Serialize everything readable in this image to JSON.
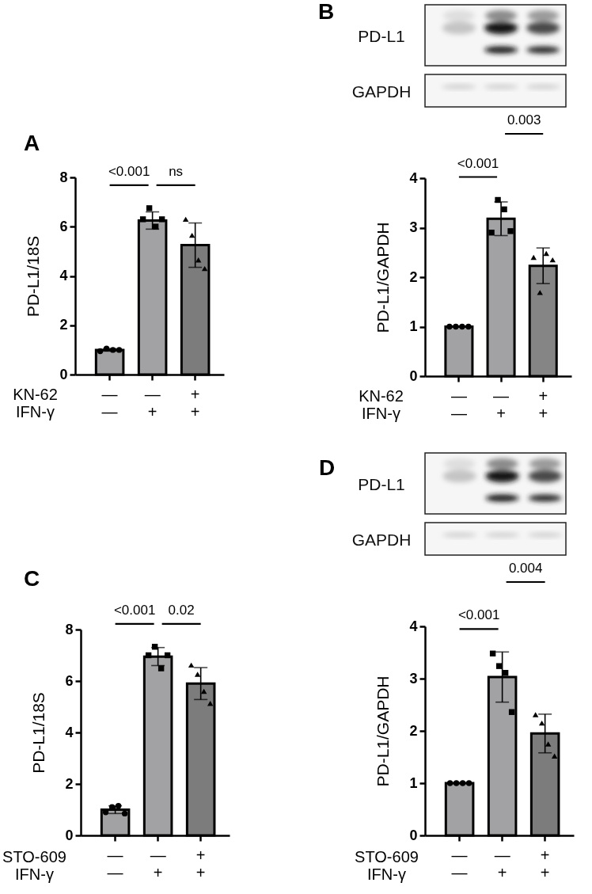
{
  "chart_data": [
    {
      "type": "bar",
      "title": "A",
      "xlabel": "KN-62\nIFN-γ",
      "ylabel": "PD-L1/18S",
      "categories": [
        "—\n—",
        "—\n+",
        "+\n+"
      ],
      "ylim": [
        0,
        8
      ],
      "yticks": [
        0,
        2,
        4,
        6,
        8
      ],
      "annotations": [
        "<0.001",
        "ns"
      ],
      "series": [
        {
          "type": "bar",
          "colors": [
            "#a2a2a4",
            "#a2a2a4",
            "#7c7c7c"
          ],
          "values": [
            1.0,
            6.25,
            5.25
          ],
          "errors": [
            0.05,
            0.35,
            0.9
          ]
        },
        {
          "type": "scatter",
          "marker": "circle",
          "color": "#000000",
          "x": [
            "—\n—",
            "—\n—",
            "—\n—",
            "—\n—"
          ],
          "values": [
            0.95,
            1.05,
            1.0,
            1.0
          ]
        },
        {
          "type": "scatter",
          "marker": "square",
          "color": "#000000",
          "x": [
            "—\n+",
            "—\n+",
            "—\n+",
            "—\n+"
          ],
          "values": [
            6.3,
            6.75,
            6.0,
            6.3
          ]
        },
        {
          "type": "scatter",
          "marker": "triangle",
          "color": "#000000",
          "x": [
            "+\n+",
            "+\n+",
            "+\n+",
            "+\n+"
          ],
          "values": [
            6.3,
            5.65,
            4.65,
            4.3
          ]
        }
      ]
    },
    {
      "type": "bar",
      "title": "B",
      "xlabel": "KN-62\nIFN-γ",
      "ylabel": "PD-L1/GAPDH",
      "categories": [
        "—\n—",
        "—\n+",
        "+\n+"
      ],
      "ylim": [
        0,
        4
      ],
      "yticks": [
        0,
        1,
        2,
        3,
        4
      ],
      "annotations": [
        "PD-L1",
        "GAPDH",
        "<0.001",
        "0.003"
      ],
      "series": [
        {
          "type": "bar",
          "colors": [
            "#a2a2a4",
            "#a2a2a4",
            "#858585"
          ],
          "values": [
            1.0,
            3.18,
            2.23
          ],
          "errors": [
            null,
            0.34,
            0.36
          ]
        },
        {
          "type": "scatter",
          "marker": "circle",
          "color": "#000000",
          "x": [
            "—\n—",
            "—\n—",
            "—\n—",
            "—\n—"
          ],
          "values": [
            1.0,
            1.0,
            1.0,
            1.0
          ]
        },
        {
          "type": "scatter",
          "marker": "square",
          "color": "#000000",
          "x": [
            "—\n+",
            "—\n+",
            "—\n+",
            "—\n+"
          ],
          "values": [
            2.9,
            3.56,
            3.37,
            2.93
          ]
        },
        {
          "type": "scatter",
          "marker": "triangle",
          "color": "#000000",
          "x": [
            "+\n+",
            "+\n+",
            "+\n+",
            "+\n+"
          ],
          "values": [
            2.4,
            1.69,
            2.48,
            2.35
          ]
        }
      ]
    },
    {
      "type": "bar",
      "title": "C",
      "xlabel": "STO-609\nIFN-γ",
      "ylabel": "PD-L1/18S",
      "categories": [
        "—\n—",
        "—\n+",
        "+\n+"
      ],
      "ylim": [
        0,
        8
      ],
      "yticks": [
        0,
        2,
        4,
        6,
        8
      ],
      "annotations": [
        "<0.001",
        "0.02"
      ],
      "series": [
        {
          "type": "bar",
          "colors": [
            "#a2a2a4",
            "#a2a2a4",
            "#7c7c7c"
          ],
          "values": [
            1.0,
            6.95,
            5.9
          ],
          "errors": [
            0.15,
            0.35,
            0.62
          ]
        },
        {
          "type": "scatter",
          "marker": "circle",
          "color": "#000000",
          "x": [
            "—\n—",
            "—\n—",
            "—\n—",
            "—\n—"
          ],
          "values": [
            0.9,
            1.1,
            1.15,
            0.85
          ]
        },
        {
          "type": "scatter",
          "marker": "square",
          "color": "#000000",
          "x": [
            "—\n+",
            "—\n+",
            "—\n+",
            "—\n+"
          ],
          "values": [
            7.0,
            7.33,
            6.49,
            7.0
          ]
        },
        {
          "type": "scatter",
          "marker": "triangle",
          "color": "#000000",
          "x": [
            "+\n+",
            "+\n+",
            "+\n+",
            "+\n+"
          ],
          "values": [
            6.62,
            6.26,
            5.6,
            5.13
          ]
        }
      ]
    },
    {
      "type": "bar",
      "title": "D",
      "xlabel": "STO-609\nIFN-γ",
      "ylabel": "PD-L1/GAPDH",
      "categories": [
        "—\n—",
        "—\n+",
        "+\n+"
      ],
      "ylim": [
        0,
        4
      ],
      "yticks": [
        0,
        1,
        2,
        3,
        4
      ],
      "annotations": [
        "PD-L1",
        "GAPDH",
        "<0.001",
        "0.004"
      ],
      "series": [
        {
          "type": "bar",
          "colors": [
            "#a2a2a4",
            "#a2a2a4",
            "#7c7c7c"
          ],
          "values": [
            1.0,
            3.03,
            1.95
          ],
          "errors": [
            null,
            0.48,
            0.37
          ]
        },
        {
          "type": "scatter",
          "marker": "circle",
          "color": "#000000",
          "x": [
            "—\n—",
            "—\n—",
            "—\n—",
            "—\n—"
          ],
          "values": [
            1.0,
            1.0,
            1.0,
            1.0
          ]
        },
        {
          "type": "scatter",
          "marker": "square",
          "color": "#000000",
          "x": [
            "—\n+",
            "—\n+",
            "—\n+",
            "—\n+"
          ],
          "values": [
            3.48,
            3.24,
            3.11,
            2.36
          ]
        },
        {
          "type": "scatter",
          "marker": "triangle",
          "color": "#000000",
          "x": [
            "+\n+",
            "+\n+",
            "+\n+",
            "+\n+"
          ],
          "values": [
            2.31,
            2.15,
            1.75,
            1.52
          ]
        }
      ]
    }
  ]
}
